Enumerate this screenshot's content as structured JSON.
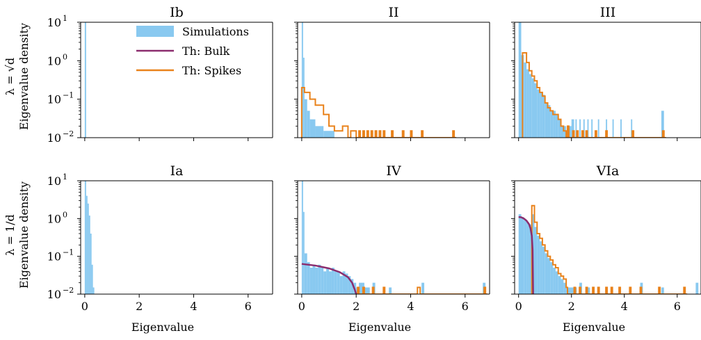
{
  "colors": {
    "simulations": "#89c9f0",
    "bulk": "#8b2d6e",
    "spikes": "#e9821b"
  },
  "legend": {
    "simulations": "Simulations",
    "bulk": "Th: Bulk",
    "spikes": "Th: Spikes"
  },
  "rows": [
    {
      "label_math": "λ = √d",
      "label_text": "Eigenvalue density"
    },
    {
      "label_math": "λ = 1/d",
      "label_text": "Eigenvalue density"
    }
  ],
  "xlabel": "Eigenvalue",
  "xticks": [
    "0",
    "2",
    "4",
    "6"
  ],
  "yticks": [
    "10",
    "10",
    "10",
    "10"
  ],
  "ytick_exponents": [
    "1",
    "0",
    "−1",
    "−2"
  ],
  "chart_data": [
    {
      "type": "bar",
      "title": "Ib",
      "xlim": [
        -0.15,
        6.9
      ],
      "ylim": [
        0.01,
        10
      ],
      "yscale": "log",
      "hist": [
        [
          0.0,
          0.05,
          10.0
        ]
      ],
      "spikes": [],
      "bulk": []
    },
    {
      "type": "bar",
      "title": "II",
      "xlim": [
        -0.15,
        6.9
      ],
      "ylim": [
        0.01,
        10
      ],
      "yscale": "log",
      "hist": [
        [
          0.0,
          0.05,
          10.0
        ],
        [
          0.05,
          0.1,
          1.2
        ],
        [
          0.1,
          0.2,
          0.1
        ],
        [
          0.2,
          0.3,
          0.05
        ],
        [
          0.3,
          0.5,
          0.03
        ],
        [
          0.5,
          0.8,
          0.02
        ],
        [
          0.8,
          1.2,
          0.015
        ]
      ],
      "spikes": [
        [
          0.0,
          0.2
        ],
        [
          0.1,
          0.15
        ],
        [
          0.3,
          0.1
        ],
        [
          0.5,
          0.07
        ],
        [
          0.8,
          0.04
        ],
        [
          1.0,
          0.02
        ],
        [
          1.2,
          0.015
        ],
        [
          1.5,
          0.02
        ],
        [
          1.7,
          0.01
        ],
        [
          1.8,
          0.015
        ],
        [
          2.0,
          0.01
        ],
        [
          2.1,
          0.015
        ],
        [
          2.15,
          0.01
        ],
        [
          2.25,
          0.015
        ],
        [
          2.3,
          0.01
        ],
        [
          2.4,
          0.015
        ],
        [
          2.45,
          0.01
        ],
        [
          2.55,
          0.015
        ],
        [
          2.6,
          0.01
        ],
        [
          2.7,
          0.015
        ],
        [
          2.75,
          0.01
        ],
        [
          2.85,
          0.015
        ],
        [
          2.9,
          0.01
        ],
        [
          3.0,
          0.015
        ],
        [
          3.05,
          0.01
        ],
        [
          3.3,
          0.015
        ],
        [
          3.35,
          0.01
        ],
        [
          3.7,
          0.015
        ],
        [
          3.75,
          0.01
        ],
        [
          4.0,
          0.015
        ],
        [
          4.05,
          0.01
        ],
        [
          4.4,
          0.015
        ],
        [
          4.45,
          0.01
        ],
        [
          5.55,
          0.015
        ],
        [
          5.6,
          0.01
        ]
      ],
      "bulk": []
    },
    {
      "type": "bar",
      "title": "III",
      "xlim": [
        -0.15,
        6.9
      ],
      "ylim": [
        0.01,
        10
      ],
      "yscale": "log",
      "hist": [
        [
          0.0,
          0.1,
          10.0
        ],
        [
          0.1,
          0.2,
          1.4
        ],
        [
          0.2,
          0.3,
          0.9
        ],
        [
          0.3,
          0.4,
          0.6
        ],
        [
          0.4,
          0.5,
          0.45
        ],
        [
          0.5,
          0.6,
          0.35
        ],
        [
          0.6,
          0.7,
          0.26
        ],
        [
          0.7,
          0.8,
          0.18
        ],
        [
          0.8,
          0.9,
          0.15
        ],
        [
          0.9,
          1.0,
          0.13
        ],
        [
          1.0,
          1.1,
          0.08
        ],
        [
          1.1,
          1.2,
          0.07
        ],
        [
          1.2,
          1.3,
          0.05
        ],
        [
          1.3,
          1.4,
          0.05
        ],
        [
          1.4,
          1.5,
          0.04
        ],
        [
          1.5,
          1.6,
          0.03
        ],
        [
          1.6,
          1.7,
          0.02
        ],
        [
          1.7,
          1.8,
          0.02
        ],
        [
          1.8,
          1.9,
          0.015
        ],
        [
          1.9,
          2.0,
          0.02
        ],
        [
          2.0,
          2.1,
          0.03
        ],
        [
          2.15,
          2.2,
          0.03
        ],
        [
          2.3,
          2.35,
          0.03
        ],
        [
          2.45,
          2.5,
          0.03
        ],
        [
          2.6,
          2.65,
          0.03
        ],
        [
          2.75,
          2.8,
          0.03
        ],
        [
          3.0,
          3.05,
          0.03
        ],
        [
          3.3,
          3.35,
          0.03
        ],
        [
          3.55,
          3.6,
          0.03
        ],
        [
          3.85,
          3.9,
          0.03
        ],
        [
          4.25,
          4.3,
          0.03
        ],
        [
          5.4,
          5.5,
          0.05
        ]
      ],
      "spikes": [
        [
          0.15,
          1.6
        ],
        [
          0.3,
          0.9
        ],
        [
          0.4,
          0.55
        ],
        [
          0.5,
          0.4
        ],
        [
          0.6,
          0.3
        ],
        [
          0.7,
          0.2
        ],
        [
          0.8,
          0.15
        ],
        [
          0.9,
          0.12
        ],
        [
          1.0,
          0.08
        ],
        [
          1.1,
          0.06
        ],
        [
          1.2,
          0.05
        ],
        [
          1.3,
          0.04
        ],
        [
          1.4,
          0.04
        ],
        [
          1.5,
          0.03
        ],
        [
          1.6,
          0.02
        ],
        [
          1.7,
          0.015
        ],
        [
          1.8,
          0.01
        ],
        [
          1.85,
          0.02
        ],
        [
          1.9,
          0.01
        ],
        [
          2.05,
          0.015
        ],
        [
          2.1,
          0.01
        ],
        [
          2.2,
          0.015
        ],
        [
          2.25,
          0.01
        ],
        [
          2.4,
          0.015
        ],
        [
          2.45,
          0.01
        ],
        [
          2.55,
          0.015
        ],
        [
          2.6,
          0.01
        ],
        [
          2.9,
          0.015
        ],
        [
          2.95,
          0.01
        ],
        [
          3.3,
          0.015
        ],
        [
          3.35,
          0.01
        ],
        [
          4.3,
          0.015
        ],
        [
          4.35,
          0.01
        ],
        [
          5.45,
          0.015
        ],
        [
          5.5,
          0.01
        ]
      ],
      "bulk": []
    },
    {
      "type": "bar",
      "title": "Ia",
      "xlim": [
        -0.15,
        6.9
      ],
      "ylim": [
        0.01,
        10
      ],
      "yscale": "log",
      "hist": [
        [
          0.0,
          0.05,
          10.0
        ],
        [
          0.05,
          0.1,
          4.0
        ],
        [
          0.1,
          0.15,
          2.5
        ],
        [
          0.15,
          0.2,
          1.2
        ],
        [
          0.2,
          0.25,
          0.4
        ],
        [
          0.25,
          0.3,
          0.06
        ],
        [
          0.3,
          0.35,
          0.015
        ]
      ],
      "spikes": [],
      "bulk": []
    },
    {
      "type": "bar",
      "title": "IV",
      "xlim": [
        -0.15,
        6.9
      ],
      "ylim": [
        0.01,
        10
      ],
      "yscale": "log",
      "hist": [
        [
          0.0,
          0.05,
          10.0
        ],
        [
          0.05,
          0.1,
          1.5
        ],
        [
          0.1,
          0.2,
          0.12
        ],
        [
          0.2,
          0.3,
          0.07
        ],
        [
          0.3,
          0.4,
          0.05
        ],
        [
          0.4,
          0.5,
          0.06
        ],
        [
          0.5,
          0.6,
          0.05
        ],
        [
          0.6,
          0.7,
          0.06
        ],
        [
          0.7,
          0.8,
          0.05
        ],
        [
          0.8,
          0.9,
          0.04
        ],
        [
          0.9,
          1.0,
          0.05
        ],
        [
          1.0,
          1.1,
          0.04
        ],
        [
          1.1,
          1.2,
          0.05
        ],
        [
          1.2,
          1.3,
          0.04
        ],
        [
          1.3,
          1.4,
          0.04
        ],
        [
          1.4,
          1.5,
          0.03
        ],
        [
          1.5,
          1.6,
          0.04
        ],
        [
          1.6,
          1.7,
          0.035
        ],
        [
          1.7,
          1.8,
          0.03
        ],
        [
          1.8,
          1.9,
          0.025
        ],
        [
          1.9,
          2.0,
          0.02
        ],
        [
          2.0,
          2.1,
          0.015
        ],
        [
          2.1,
          2.3,
          0.02
        ],
        [
          2.3,
          2.5,
          0.015
        ],
        [
          2.6,
          2.7,
          0.02
        ],
        [
          3.2,
          3.3,
          0.015
        ],
        [
          4.4,
          4.5,
          0.02
        ],
        [
          6.65,
          6.75,
          0.02
        ]
      ],
      "spikes": [
        [
          2.05,
          0.015
        ],
        [
          2.1,
          0.01
        ],
        [
          2.25,
          0.015
        ],
        [
          2.3,
          0.01
        ],
        [
          2.6,
          0.015
        ],
        [
          2.65,
          0.01
        ],
        [
          3.0,
          0.015
        ],
        [
          3.05,
          0.01
        ],
        [
          4.25,
          0.015
        ],
        [
          4.35,
          0.01
        ],
        [
          6.7,
          0.015
        ],
        [
          6.75,
          0.01
        ]
      ],
      "bulk": [
        [
          0.0,
          0.063
        ],
        [
          0.5,
          0.057
        ],
        [
          1.0,
          0.048
        ],
        [
          1.4,
          0.038
        ],
        [
          1.7,
          0.028
        ],
        [
          1.85,
          0.02
        ],
        [
          1.95,
          0.013
        ],
        [
          2.0,
          0.01
        ]
      ]
    },
    {
      "type": "bar",
      "title": "VIa",
      "xlim": [
        -0.15,
        6.9
      ],
      "ylim": [
        0.01,
        10
      ],
      "yscale": "log",
      "hist": [
        [
          0.0,
          0.1,
          1.3
        ],
        [
          0.1,
          0.2,
          1.1
        ],
        [
          0.2,
          0.3,
          0.9
        ],
        [
          0.3,
          0.4,
          0.8
        ],
        [
          0.4,
          0.5,
          0.7
        ],
        [
          0.5,
          0.6,
          1.3
        ],
        [
          0.6,
          0.7,
          0.6
        ],
        [
          0.7,
          0.8,
          0.35
        ],
        [
          0.8,
          0.9,
          0.25
        ],
        [
          0.9,
          1.0,
          0.18
        ],
        [
          1.0,
          1.1,
          0.12
        ],
        [
          1.1,
          1.2,
          0.09
        ],
        [
          1.2,
          1.3,
          0.07
        ],
        [
          1.3,
          1.4,
          0.05
        ],
        [
          1.4,
          1.5,
          0.04
        ],
        [
          1.5,
          1.6,
          0.03
        ],
        [
          1.6,
          1.7,
          0.025
        ],
        [
          1.7,
          1.8,
          0.02
        ],
        [
          1.8,
          2.2,
          0.015
        ],
        [
          2.3,
          2.4,
          0.02
        ],
        [
          2.6,
          2.7,
          0.015
        ],
        [
          4.6,
          4.7,
          0.02
        ],
        [
          5.4,
          5.5,
          0.015
        ],
        [
          6.7,
          6.8,
          0.02
        ]
      ],
      "spikes": [
        [
          0.5,
          2.2
        ],
        [
          0.6,
          0.8
        ],
        [
          0.7,
          0.4
        ],
        [
          0.8,
          0.3
        ],
        [
          0.9,
          0.2
        ],
        [
          1.0,
          0.14
        ],
        [
          1.1,
          0.1
        ],
        [
          1.2,
          0.08
        ],
        [
          1.3,
          0.06
        ],
        [
          1.4,
          0.05
        ],
        [
          1.5,
          0.035
        ],
        [
          1.6,
          0.03
        ],
        [
          1.7,
          0.025
        ],
        [
          1.8,
          0.015
        ],
        [
          1.85,
          0.01
        ],
        [
          2.1,
          0.015
        ],
        [
          2.15,
          0.01
        ],
        [
          2.3,
          0.015
        ],
        [
          2.35,
          0.01
        ],
        [
          2.55,
          0.015
        ],
        [
          2.6,
          0.01
        ],
        [
          2.8,
          0.015
        ],
        [
          2.85,
          0.01
        ],
        [
          3.0,
          0.015
        ],
        [
          3.05,
          0.01
        ],
        [
          3.3,
          0.015
        ],
        [
          3.35,
          0.01
        ],
        [
          3.5,
          0.015
        ],
        [
          3.55,
          0.01
        ],
        [
          3.8,
          0.015
        ],
        [
          3.85,
          0.01
        ],
        [
          4.2,
          0.015
        ],
        [
          4.25,
          0.01
        ],
        [
          4.6,
          0.015
        ],
        [
          4.65,
          0.01
        ],
        [
          5.3,
          0.015
        ],
        [
          5.35,
          0.01
        ],
        [
          6.25,
          0.015
        ],
        [
          6.3,
          0.01
        ]
      ],
      "bulk": [
        [
          0.0,
          1.1
        ],
        [
          0.1,
          1.08
        ],
        [
          0.2,
          1.0
        ],
        [
          0.3,
          0.88
        ],
        [
          0.4,
          0.7
        ],
        [
          0.45,
          0.55
        ],
        [
          0.5,
          0.35
        ],
        [
          0.53,
          0.15
        ],
        [
          0.55,
          0.01
        ]
      ]
    }
  ]
}
